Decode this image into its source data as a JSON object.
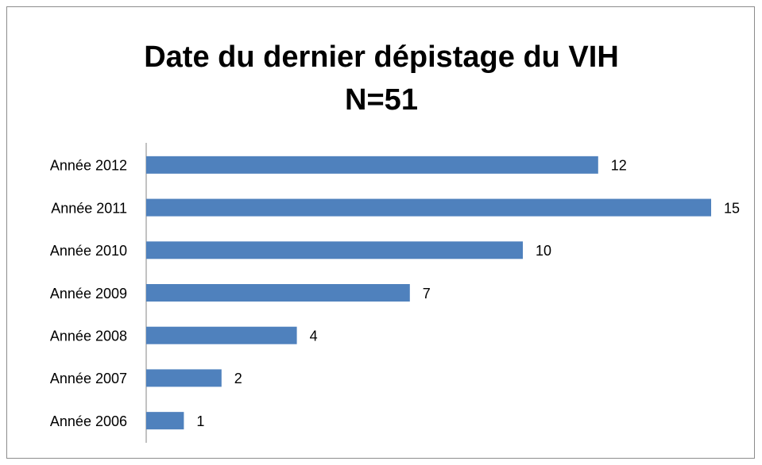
{
  "chart_data": {
    "type": "barh",
    "title": "Date du dernier dépistage du VIH",
    "subtitle": "N=51",
    "categories": [
      "Année 2012",
      "Année 2011",
      "Année 2010",
      "Année 2009",
      "Année 2008",
      "Année 2007",
      "Année 2006"
    ],
    "values": [
      12,
      15,
      10,
      7,
      4,
      2,
      1
    ],
    "color": "#4f81bd"
  }
}
